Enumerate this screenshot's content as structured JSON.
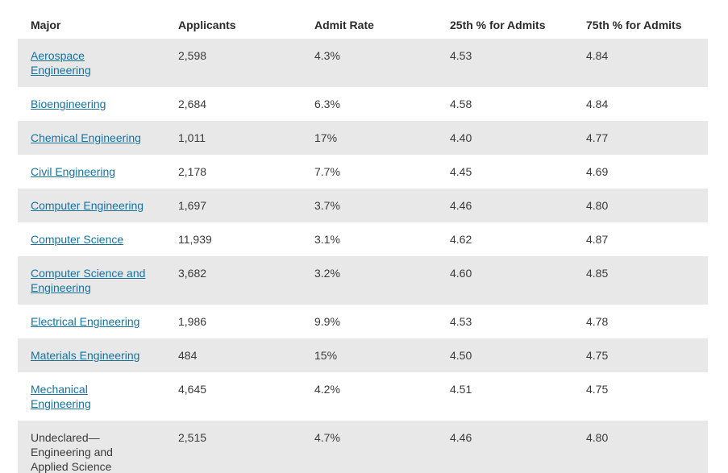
{
  "colors": {
    "link_blue": "#15739f",
    "row_stripe_gray": "#e8e8e8",
    "header_text": "#2b2b2b",
    "body_text": "#3a3a3a",
    "page_background": "#ffffff"
  },
  "table": {
    "columns": [
      "Major",
      "Applicants",
      "Admit Rate",
      "25th % for Admits",
      "75th % for Admits"
    ],
    "rows": [
      {
        "major": "Aerospace Engineering",
        "major_is_link": true,
        "applicants": "2,598",
        "admit_rate": "4.3%",
        "p25": "4.53",
        "p75": "4.84"
      },
      {
        "major": "Bioengineering",
        "major_is_link": true,
        "applicants": "2,684",
        "admit_rate": "6.3%",
        "p25": "4.58",
        "p75": "4.84"
      },
      {
        "major": "Chemical Engineering",
        "major_is_link": true,
        "applicants": "1,011",
        "admit_rate": "17%",
        "p25": "4.40",
        "p75": "4.77"
      },
      {
        "major": "Civil Engineering",
        "major_is_link": true,
        "applicants": "2,178",
        "admit_rate": "7.7%",
        "p25": "4.45",
        "p75": "4.69"
      },
      {
        "major": "Computer Engineering",
        "major_is_link": true,
        "applicants": "1,697",
        "admit_rate": "3.7%",
        "p25": "4.46",
        "p75": "4.80"
      },
      {
        "major": "Computer Science",
        "major_is_link": true,
        "applicants": "11,939",
        "admit_rate": "3.1%",
        "p25": "4.62",
        "p75": "4.87"
      },
      {
        "major": "Computer Science and Engineering",
        "major_is_link": true,
        "applicants": "3,682",
        "admit_rate": "3.2%",
        "p25": "4.60",
        "p75": "4.85"
      },
      {
        "major": "Electrical Engineering",
        "major_is_link": true,
        "applicants": "1,986",
        "admit_rate": "9.9%",
        "p25": "4.53",
        "p75": "4.78"
      },
      {
        "major": "Materials Engineering",
        "major_is_link": true,
        "applicants": "484",
        "admit_rate": "15%",
        "p25": "4.50",
        "p75": "4.75"
      },
      {
        "major": "Mechanical Engineering",
        "major_is_link": true,
        "applicants": "4,645",
        "admit_rate": "4.2%",
        "p25": "4.51",
        "p75": "4.75"
      },
      {
        "major": "Undeclared—Engineering and Applied Science",
        "major_is_link": false,
        "applicants": "2,515",
        "admit_rate": "4.7%",
        "p25": "4.46",
        "p75": "4.80"
      }
    ]
  }
}
